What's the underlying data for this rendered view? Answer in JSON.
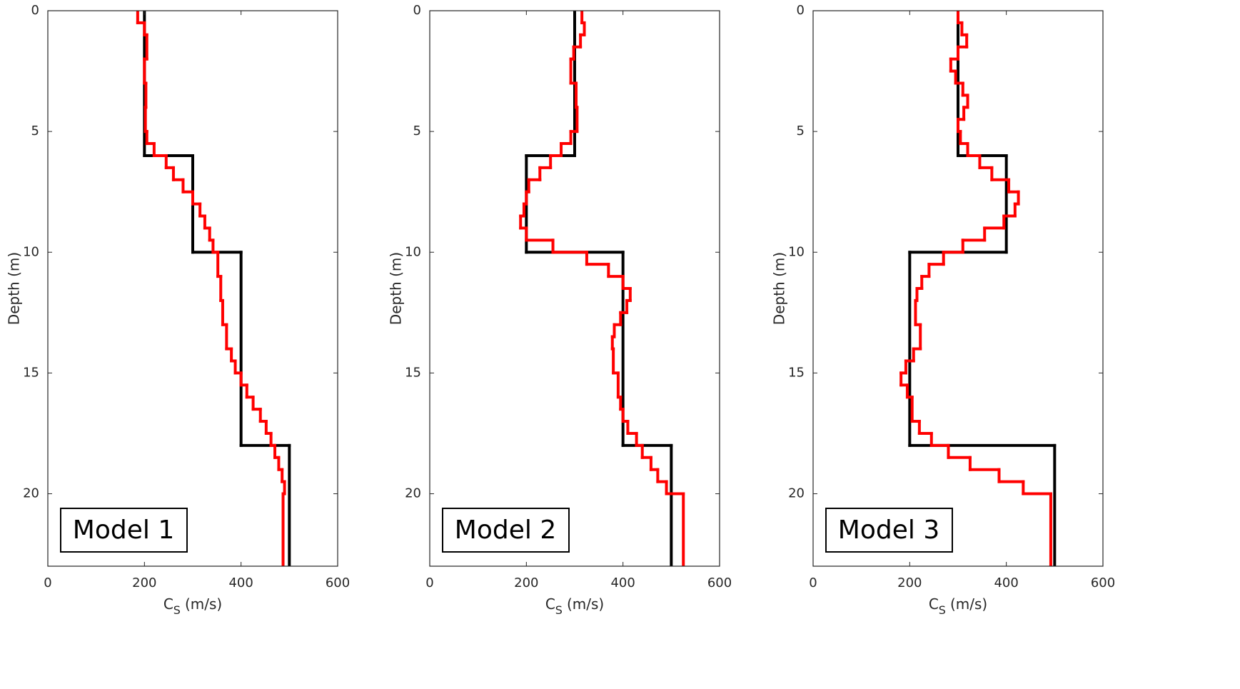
{
  "chart_data": [
    {
      "type": "step",
      "annotation": "Model 1",
      "xlabel": {
        "main": "C",
        "sub": "S",
        "unit": "(m/s)"
      },
      "ylabel": "Depth (m)",
      "xlim": [
        0,
        600
      ],
      "xticks": [
        0,
        200,
        400,
        600
      ],
      "ylim": [
        0,
        23
      ],
      "yticks": [
        0,
        5,
        10,
        15,
        20
      ],
      "y_reversed": true,
      "series": [
        {
          "color": "#000000",
          "bins": [
            0,
            6,
            10,
            18,
            23
          ],
          "values": [
            200,
            300,
            400,
            500
          ]
        },
        {
          "color": "#ff0000",
          "bins": [
            0,
            0.5,
            1,
            2,
            3,
            4,
            5,
            5.5,
            6,
            6.5,
            7,
            7.5,
            8,
            8.5,
            9,
            9.5,
            10,
            11,
            12,
            13,
            14,
            14.5,
            15,
            15.5,
            16,
            16.5,
            17,
            17.5,
            18,
            18.5,
            19,
            19.5,
            20,
            23
          ],
          "values": [
            186,
            200,
            205,
            200,
            203,
            202,
            205,
            220,
            245,
            260,
            280,
            300,
            315,
            325,
            335,
            342,
            352,
            358,
            362,
            370,
            380,
            388,
            400,
            412,
            425,
            440,
            452,
            462,
            470,
            478,
            485,
            490,
            487
          ]
        }
      ]
    },
    {
      "type": "step",
      "annotation": "Model 2",
      "xlabel": {
        "main": "C",
        "sub": "S",
        "unit": "(m/s)"
      },
      "ylabel": "Depth (m)",
      "xlim": [
        0,
        600
      ],
      "xticks": [
        0,
        200,
        400,
        600
      ],
      "ylim": [
        0,
        23
      ],
      "yticks": [
        0,
        5,
        10,
        15,
        20
      ],
      "y_reversed": true,
      "series": [
        {
          "color": "#000000",
          "bins": [
            0,
            6,
            10,
            18,
            23
          ],
          "values": [
            300,
            200,
            400,
            500
          ]
        },
        {
          "color": "#ff0000",
          "bins": [
            0,
            0.5,
            1,
            1.5,
            2,
            3,
            4,
            5,
            5.5,
            6,
            6.5,
            7,
            7.5,
            8,
            8.5,
            9,
            9.5,
            10,
            10.5,
            11,
            11.5,
            12,
            12.5,
            13,
            13.5,
            14,
            15,
            16,
            16.5,
            17,
            17.5,
            18,
            18.5,
            19,
            19.5,
            20,
            23
          ],
          "values": [
            315,
            320,
            312,
            298,
            292,
            303,
            305,
            292,
            272,
            250,
            228,
            205,
            200,
            195,
            188,
            200,
            255,
            325,
            370,
            400,
            415,
            408,
            395,
            382,
            378,
            380,
            390,
            395,
            400,
            410,
            428,
            440,
            458,
            472,
            490,
            525
          ]
        }
      ]
    },
    {
      "type": "step",
      "annotation": "Model 3",
      "xlabel": {
        "main": "C",
        "sub": "S",
        "unit": "(m/s)"
      },
      "ylabel": "Depth (m)",
      "xlim": [
        0,
        600
      ],
      "xticks": [
        0,
        200,
        400,
        600
      ],
      "ylim": [
        0,
        23
      ],
      "yticks": [
        0,
        5,
        10,
        15,
        20
      ],
      "y_reversed": true,
      "series": [
        {
          "color": "#000000",
          "bins": [
            0,
            6,
            10,
            18,
            23
          ],
          "values": [
            300,
            400,
            200,
            500
          ]
        },
        {
          "color": "#ff0000",
          "bins": [
            0,
            0.5,
            1,
            1.5,
            2,
            2.5,
            3,
            3.5,
            4,
            4.5,
            5,
            5.5,
            6,
            6.5,
            7,
            7.5,
            8,
            8.5,
            9,
            9.5,
            10,
            10.5,
            11,
            11.5,
            12,
            13,
            14,
            14.5,
            15,
            15.5,
            16,
            17,
            17.5,
            18,
            18.5,
            19,
            19.5,
            20,
            23
          ],
          "values": [
            300,
            308,
            318,
            300,
            285,
            295,
            310,
            320,
            312,
            300,
            305,
            320,
            345,
            370,
            405,
            425,
            418,
            395,
            355,
            310,
            270,
            240,
            225,
            215,
            212,
            222,
            208,
            192,
            182,
            195,
            205,
            220,
            245,
            280,
            325,
            385,
            435,
            492
          ]
        }
      ]
    }
  ]
}
